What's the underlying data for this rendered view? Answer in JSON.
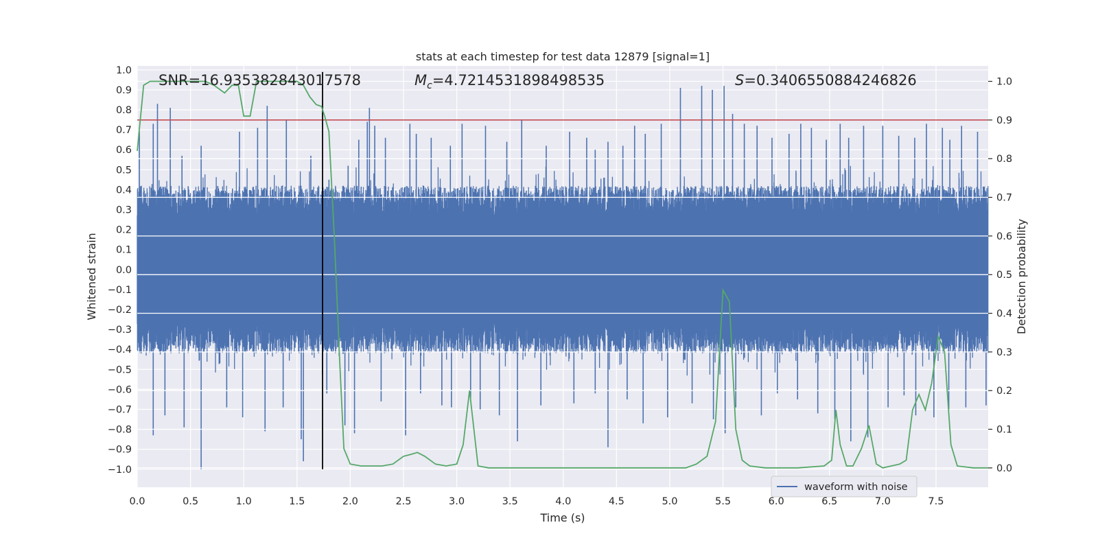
{
  "chart_data": {
    "type": "line",
    "title": "stats at each timestep for test data 12879 [signal=1]",
    "xlabel": "Time (s)",
    "ylabel": "Whitened strain",
    "y2label": "Detection probability",
    "xlim": [
      0.0,
      7.99
    ],
    "ylim": [
      -1.09,
      1.02
    ],
    "y2lim": [
      -0.05,
      1.04
    ],
    "x_ticks": [
      0.0,
      0.5,
      1.0,
      1.5,
      2.0,
      2.5,
      3.0,
      3.5,
      4.0,
      4.5,
      5.0,
      5.5,
      6.0,
      6.5,
      7.0,
      7.5
    ],
    "x_tick_labels": [
      "0.0",
      "0.5",
      "1.0",
      "1.5",
      "2.0",
      "2.5",
      "3.0",
      "3.5",
      "4.0",
      "4.5",
      "5.0",
      "5.5",
      "6.0",
      "6.5",
      "7.0",
      "7.5"
    ],
    "y_ticks": [
      1.0,
      0.9,
      0.8,
      0.7,
      0.6,
      0.5,
      0.4,
      0.3,
      0.2,
      0.1,
      0.0,
      -0.1,
      -0.2,
      -0.3,
      -0.4,
      -0.5,
      -0.6,
      -0.7,
      -0.8,
      -0.9,
      -1.0
    ],
    "y_tick_labels": [
      "1.0",
      "0.9",
      "0.8",
      "0.7",
      "0.6",
      "0.5",
      "0.4",
      "0.3",
      "0.2",
      "0.1",
      "0.0",
      "−0.1",
      "−0.2",
      "−0.3",
      "−0.4",
      "−0.5",
      "−0.6",
      "−0.7",
      "−0.8",
      "−0.9",
      "−1.0"
    ],
    "y2_ticks": [
      1.0,
      0.9,
      0.8,
      0.7,
      0.6,
      0.5,
      0.4,
      0.3,
      0.2,
      0.1,
      0.0
    ],
    "y2_tick_labels": [
      "1.0",
      "0.9",
      "0.8",
      "0.7",
      "0.6",
      "0.5",
      "0.4",
      "0.3",
      "0.2",
      "0.1",
      "0.0"
    ],
    "grid": true,
    "annotations": {
      "snr": "SNR=16.935382843017578",
      "mc_symbol": "M",
      "mc_sub": "c",
      "mc_value": "=4.7214531898498535",
      "s_symbol": "S",
      "s_value": "=0.3406550884246826"
    },
    "threshold": {
      "axis": "y2",
      "value": 0.9,
      "color": "#c44e52"
    },
    "event_marker": {
      "axis": "x",
      "value": 1.74,
      "color": "#000000"
    },
    "series": [
      {
        "name": "waveform with noise",
        "axis": "y",
        "style": "dense-line",
        "color": "#4c72b0",
        "band": 0.35,
        "spikes": [
          [
            0.02,
            0.69
          ],
          [
            0.15,
            0.73
          ],
          [
            0.19,
            0.83
          ],
          [
            0.31,
            0.81
          ],
          [
            0.42,
            0.57
          ],
          [
            0.6,
            0.62
          ],
          [
            0.96,
            0.69
          ],
          [
            1.13,
            0.71
          ],
          [
            1.22,
            0.82
          ],
          [
            1.4,
            0.75
          ],
          [
            1.63,
            0.57
          ],
          [
            1.8,
            0.45
          ],
          [
            1.98,
            0.52
          ],
          [
            2.08,
            0.65
          ],
          [
            2.16,
            0.74
          ],
          [
            2.18,
            0.81
          ],
          [
            2.23,
            0.72
          ],
          [
            2.33,
            0.66
          ],
          [
            2.56,
            0.73
          ],
          [
            2.62,
            0.68
          ],
          [
            2.76,
            0.66
          ],
          [
            2.94,
            0.62
          ],
          [
            3.05,
            0.73
          ],
          [
            3.27,
            0.72
          ],
          [
            3.47,
            0.64
          ],
          [
            3.61,
            0.75
          ],
          [
            3.84,
            0.62
          ],
          [
            4.06,
            0.69
          ],
          [
            4.22,
            0.66
          ],
          [
            4.3,
            0.6
          ],
          [
            4.42,
            0.64
          ],
          [
            4.56,
            0.62
          ],
          [
            4.67,
            0.72
          ],
          [
            4.77,
            0.68
          ],
          [
            4.92,
            0.73
          ],
          [
            5.1,
            0.91
          ],
          [
            5.3,
            0.92
          ],
          [
            5.4,
            0.9
          ],
          [
            5.51,
            0.92
          ],
          [
            5.59,
            0.78
          ],
          [
            5.7,
            0.73
          ],
          [
            5.82,
            0.72
          ],
          [
            5.96,
            0.66
          ],
          [
            6.12,
            0.68
          ],
          [
            6.23,
            0.73
          ],
          [
            6.33,
            0.71
          ],
          [
            6.47,
            0.65
          ],
          [
            6.6,
            0.73
          ],
          [
            6.68,
            0.66
          ],
          [
            6.82,
            0.72
          ],
          [
            7.0,
            0.72
          ],
          [
            7.15,
            0.67
          ],
          [
            7.3,
            0.66
          ],
          [
            7.41,
            0.73
          ],
          [
            7.56,
            0.71
          ],
          [
            7.63,
            0.65
          ],
          [
            7.74,
            0.72
          ],
          [
            7.89,
            0.69
          ],
          [
            0.15,
            -0.83
          ],
          [
            0.26,
            -0.73
          ],
          [
            0.44,
            -0.79
          ],
          [
            0.6,
            -1.0
          ],
          [
            0.84,
            -0.69
          ],
          [
            0.99,
            -0.74
          ],
          [
            1.2,
            -0.81
          ],
          [
            1.37,
            -0.69
          ],
          [
            1.54,
            -0.85
          ],
          [
            1.56,
            -0.96
          ],
          [
            1.78,
            -0.62
          ],
          [
            1.95,
            -0.78
          ],
          [
            2.04,
            -0.82
          ],
          [
            2.29,
            -0.66
          ],
          [
            2.52,
            -0.83
          ],
          [
            2.66,
            -0.62
          ],
          [
            2.86,
            -0.68
          ],
          [
            2.95,
            -0.69
          ],
          [
            3.13,
            -0.66
          ],
          [
            3.22,
            -0.7
          ],
          [
            3.4,
            -0.73
          ],
          [
            3.57,
            -0.86
          ],
          [
            3.79,
            -0.68
          ],
          [
            4.1,
            -0.67
          ],
          [
            4.3,
            -0.62
          ],
          [
            4.42,
            -0.89
          ],
          [
            4.6,
            -0.65
          ],
          [
            4.75,
            -0.77
          ],
          [
            4.98,
            -0.74
          ],
          [
            5.21,
            -0.67
          ],
          [
            5.41,
            -0.75
          ],
          [
            5.52,
            -0.82
          ],
          [
            5.62,
            -0.69
          ],
          [
            5.86,
            -0.73
          ],
          [
            6.01,
            -0.62
          ],
          [
            6.2,
            -0.65
          ],
          [
            6.39,
            -0.72
          ],
          [
            6.55,
            -0.75
          ],
          [
            6.7,
            -0.86
          ],
          [
            6.86,
            -0.84
          ],
          [
            7.05,
            -0.69
          ],
          [
            7.2,
            -0.63
          ],
          [
            7.31,
            -0.73
          ],
          [
            7.48,
            -0.74
          ],
          [
            7.62,
            -0.7
          ],
          [
            7.78,
            -0.69
          ],
          [
            7.97,
            -0.68
          ]
        ]
      },
      {
        "name": "detection probability",
        "axis": "y2",
        "style": "line",
        "color": "#55a868",
        "points": [
          [
            0.0,
            0.82
          ],
          [
            0.06,
            0.99
          ],
          [
            0.12,
            1.0
          ],
          [
            0.3,
            1.0
          ],
          [
            0.5,
            1.0
          ],
          [
            0.64,
            1.0
          ],
          [
            0.72,
            0.99
          ],
          [
            0.82,
            0.97
          ],
          [
            0.89,
            0.99
          ],
          [
            0.95,
            0.99
          ],
          [
            1.0,
            0.91
          ],
          [
            1.06,
            0.91
          ],
          [
            1.12,
            1.0
          ],
          [
            1.2,
            1.0
          ],
          [
            1.3,
            1.0
          ],
          [
            1.42,
            1.0
          ],
          [
            1.5,
            1.0
          ],
          [
            1.56,
            0.99
          ],
          [
            1.62,
            0.96
          ],
          [
            1.68,
            0.94
          ],
          [
            1.73,
            0.935
          ],
          [
            1.76,
            0.91
          ],
          [
            1.8,
            0.87
          ],
          [
            1.85,
            0.6
          ],
          [
            1.9,
            0.28
          ],
          [
            1.94,
            0.05
          ],
          [
            2.0,
            0.01
          ],
          [
            2.1,
            0.005
          ],
          [
            2.3,
            0.005
          ],
          [
            2.4,
            0.01
          ],
          [
            2.5,
            0.03
          ],
          [
            2.57,
            0.035
          ],
          [
            2.63,
            0.04
          ],
          [
            2.7,
            0.03
          ],
          [
            2.8,
            0.01
          ],
          [
            2.9,
            0.005
          ],
          [
            3.0,
            0.01
          ],
          [
            3.06,
            0.06
          ],
          [
            3.12,
            0.2
          ],
          [
            3.2,
            0.005
          ],
          [
            3.3,
            0.0
          ],
          [
            3.5,
            0.0
          ],
          [
            3.7,
            0.0
          ],
          [
            4.0,
            0.0
          ],
          [
            4.2,
            0.0
          ],
          [
            4.5,
            0.0
          ],
          [
            4.8,
            0.0
          ],
          [
            5.0,
            0.0
          ],
          [
            5.15,
            0.0
          ],
          [
            5.25,
            0.01
          ],
          [
            5.35,
            0.03
          ],
          [
            5.43,
            0.12
          ],
          [
            5.5,
            0.46
          ],
          [
            5.56,
            0.43
          ],
          [
            5.62,
            0.1
          ],
          [
            5.68,
            0.02
          ],
          [
            5.75,
            0.005
          ],
          [
            5.9,
            0.0
          ],
          [
            6.2,
            0.0
          ],
          [
            6.45,
            0.005
          ],
          [
            6.52,
            0.02
          ],
          [
            6.56,
            0.15
          ],
          [
            6.6,
            0.06
          ],
          [
            6.66,
            0.005
          ],
          [
            6.72,
            0.005
          ],
          [
            6.8,
            0.05
          ],
          [
            6.87,
            0.11
          ],
          [
            6.94,
            0.01
          ],
          [
            7.0,
            0.0
          ],
          [
            7.08,
            0.005
          ],
          [
            7.16,
            0.01
          ],
          [
            7.22,
            0.02
          ],
          [
            7.28,
            0.15
          ],
          [
            7.34,
            0.19
          ],
          [
            7.4,
            0.15
          ],
          [
            7.46,
            0.22
          ],
          [
            7.52,
            0.34
          ],
          [
            7.58,
            0.3
          ],
          [
            7.64,
            0.06
          ],
          [
            7.7,
            0.005
          ],
          [
            7.85,
            0.0
          ],
          [
            7.99,
            0.0
          ]
        ]
      }
    ],
    "legend": {
      "placement": "bottom-right",
      "entries": [
        "waveform with noise"
      ]
    }
  }
}
